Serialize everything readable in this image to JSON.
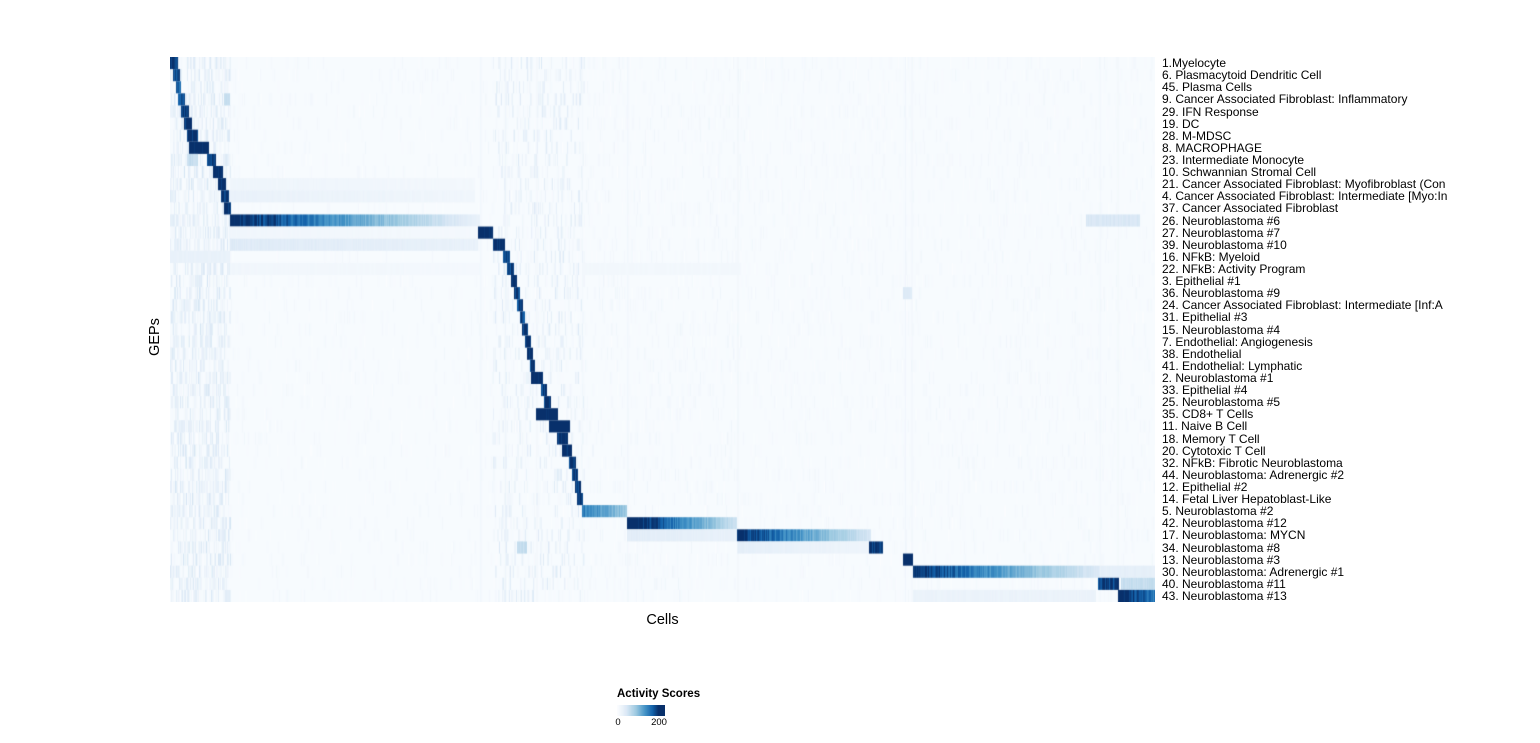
{
  "chart_data": {
    "type": "heatmap",
    "title": "",
    "xlabel": "Cells",
    "ylabel": "GEPs",
    "legend": {
      "title": "Activity Scores",
      "min": 0,
      "max": 200
    },
    "colormap": {
      "description": "white-to-dark-blue (Blues)",
      "stops": [
        {
          "t": 0.0,
          "color": "#fbfdff"
        },
        {
          "t": 0.22,
          "color": "#dce9f6"
        },
        {
          "t": 0.45,
          "color": "#9ecae1"
        },
        {
          "t": 0.68,
          "color": "#4292c6"
        },
        {
          "t": 0.86,
          "color": "#1361a9"
        },
        {
          "t": 1.0,
          "color": "#08306b"
        }
      ]
    },
    "axes": {
      "x_range_note": "cells ordered by cluster, no tick labels",
      "grid": false,
      "legend_position": "bottom-center"
    },
    "rows": [
      {
        "label": "1.Myelocyte",
        "segments": [
          [
            0.0,
            0.008,
            190,
            190
          ]
        ]
      },
      {
        "label": "6. Plasmacytoid Dendritic Cell",
        "segments": [
          [
            0.003,
            0.01,
            180,
            180
          ]
        ]
      },
      {
        "label": "45. Plasma Cells",
        "segments": [
          [
            0.006,
            0.011,
            170,
            170
          ]
        ]
      },
      {
        "label": "9. Cancer Associated Fibroblast: Inflammatory",
        "segments": [
          [
            0.008,
            0.015,
            185,
            185
          ],
          [
            0.055,
            0.061,
            60,
            60
          ]
        ]
      },
      {
        "label": "29. IFN Response",
        "segments": [
          [
            0.011,
            0.019,
            190,
            190
          ]
        ]
      },
      {
        "label": "19. DC",
        "segments": [
          [
            0.014,
            0.022,
            200,
            200
          ]
        ]
      },
      {
        "label": "28. M-MDSC",
        "segments": [
          [
            0.017,
            0.028,
            200,
            200
          ]
        ]
      },
      {
        "label": "8. MACROPHAGE",
        "segments": [
          [
            0.019,
            0.04,
            215,
            215
          ]
        ]
      },
      {
        "label": "23. Intermediate Monocyte",
        "segments": [
          [
            0.038,
            0.047,
            195,
            195
          ],
          [
            0.017,
            0.028,
            60,
            60
          ]
        ]
      },
      {
        "label": "10. Schwannian Stromal Cell",
        "segments": [
          [
            0.044,
            0.054,
            210,
            210
          ]
        ]
      },
      {
        "label": "21. Cancer Associated Fibroblast: Myofibroblast (Con",
        "segments": [
          [
            0.049,
            0.057,
            200,
            200
          ],
          [
            0.061,
            0.31,
            18,
            12
          ]
        ]
      },
      {
        "label": "4. Cancer Associated Fibroblast: Intermediate [Myo:In",
        "segments": [
          [
            0.052,
            0.06,
            200,
            200
          ],
          [
            0.061,
            0.31,
            25,
            15
          ]
        ]
      },
      {
        "label": "37. Cancer Associated Fibroblast",
        "segments": [
          [
            0.055,
            0.062,
            205,
            205
          ]
        ]
      },
      {
        "label": "26. Neuroblastoma #6",
        "segments": [
          [
            0.061,
            0.315,
            215,
            25
          ],
          [
            0.93,
            0.985,
            45,
            45
          ]
        ]
      },
      {
        "label": "27. Neuroblastoma #7",
        "segments": [
          [
            0.313,
            0.328,
            210,
            210
          ],
          [
            0.061,
            0.313,
            15,
            10
          ]
        ]
      },
      {
        "label": "39. Neuroblastoma #10",
        "segments": [
          [
            0.061,
            0.313,
            40,
            25
          ],
          [
            0.328,
            0.34,
            205,
            205
          ]
        ]
      },
      {
        "label": "16. NFkB: Myeloid",
        "segments": [
          [
            0.338,
            0.345,
            195,
            195
          ],
          [
            0.0,
            0.061,
            25,
            25
          ]
        ]
      },
      {
        "label": "22. NFkB: Activity Program",
        "segments": [
          [
            0.342,
            0.349,
            190,
            190
          ],
          [
            0.061,
            0.315,
            14,
            10
          ],
          [
            0.418,
            0.58,
            12,
            12
          ]
        ]
      },
      {
        "label": "3. Epithelial #1",
        "segments": [
          [
            0.346,
            0.352,
            200,
            200
          ]
        ]
      },
      {
        "label": "36. Neuroblastoma #9",
        "segments": [
          [
            0.349,
            0.355,
            195,
            195
          ],
          [
            0.744,
            0.753,
            40,
            40
          ]
        ]
      },
      {
        "label": "24. Cancer Associated Fibroblast: Intermediate [Inf:A",
        "segments": [
          [
            0.352,
            0.358,
            190,
            190
          ]
        ]
      },
      {
        "label": "31. Epithelial #3",
        "segments": [
          [
            0.355,
            0.36,
            185,
            185
          ]
        ]
      },
      {
        "label": "15. Neuroblastoma #4",
        "segments": [
          [
            0.357,
            0.363,
            200,
            200
          ]
        ]
      },
      {
        "label": "7. Endothelial: Angiogenesis",
        "segments": [
          [
            0.36,
            0.366,
            205,
            205
          ]
        ]
      },
      {
        "label": "38. Endothelial",
        "segments": [
          [
            0.362,
            0.369,
            210,
            210
          ]
        ]
      },
      {
        "label": "41. Endothelial: Lymphatic",
        "segments": [
          [
            0.365,
            0.371,
            195,
            195
          ]
        ]
      },
      {
        "label": "2. Neuroblastoma #1",
        "segments": [
          [
            0.367,
            0.379,
            215,
            215
          ]
        ]
      },
      {
        "label": "33. Epithelial #4",
        "segments": [
          [
            0.377,
            0.383,
            190,
            190
          ]
        ]
      },
      {
        "label": "25. Neuroblastoma #5",
        "segments": [
          [
            0.38,
            0.387,
            195,
            195
          ]
        ]
      },
      {
        "label": "35. CD8+ T Cells",
        "segments": [
          [
            0.372,
            0.394,
            215,
            215
          ]
        ]
      },
      {
        "label": "11. Naive B Cell",
        "segments": [
          [
            0.385,
            0.406,
            220,
            220
          ]
        ]
      },
      {
        "label": "18. Memory T Cell",
        "segments": [
          [
            0.393,
            0.404,
            205,
            205
          ]
        ]
      },
      {
        "label": "20. Cytotoxic T Cell",
        "segments": [
          [
            0.398,
            0.408,
            200,
            200
          ]
        ]
      },
      {
        "label": "32. NFkB: Fibrotic Neuroblastoma",
        "segments": [
          [
            0.405,
            0.412,
            195,
            195
          ]
        ]
      },
      {
        "label": "44. Neuroblastoma: Adrenergic #2",
        "segments": [
          [
            0.408,
            0.414,
            190,
            190
          ]
        ]
      },
      {
        "label": "12. Epithelial #2",
        "segments": [
          [
            0.411,
            0.417,
            195,
            195
          ]
        ]
      },
      {
        "label": "14. Fetal Liver Hepatoblast-Like",
        "segments": [
          [
            0.413,
            0.419,
            200,
            200
          ]
        ]
      },
      {
        "label": "5. Neuroblastoma #2",
        "segments": [
          [
            0.418,
            0.464,
            150,
            90
          ]
        ]
      },
      {
        "label": "42. Neuroblastoma #12",
        "segments": [
          [
            0.464,
            0.576,
            230,
            55
          ]
        ]
      },
      {
        "label": "17. Neuroblastoma: MYCN",
        "segments": [
          [
            0.576,
            0.712,
            205,
            45
          ],
          [
            0.464,
            0.576,
            35,
            25
          ]
        ]
      },
      {
        "label": "34. Neuroblastoma #8",
        "segments": [
          [
            0.576,
            0.71,
            30,
            18
          ],
          [
            0.71,
            0.724,
            195,
            195
          ],
          [
            0.352,
            0.362,
            60,
            60
          ]
        ]
      },
      {
        "label": "13. Neuroblastoma #3",
        "segments": [
          [
            0.744,
            0.754,
            210,
            210
          ]
        ]
      },
      {
        "label": "30. Neuroblastoma: Adrenergic #1",
        "segments": [
          [
            0.754,
            0.944,
            205,
            40
          ],
          [
            0.944,
            1.0,
            30,
            30
          ]
        ]
      },
      {
        "label": "40. Neuroblastoma #11",
        "segments": [
          [
            0.942,
            0.963,
            190,
            190
          ],
          [
            0.965,
            1.0,
            60,
            60
          ]
        ]
      },
      {
        "label": "43. Neuroblastoma #13",
        "segments": [
          [
            0.962,
            1.0,
            215,
            150
          ],
          [
            0.754,
            0.94,
            22,
            22
          ]
        ]
      }
    ],
    "render": {
      "background_value": 5,
      "stripes": [
        {
          "x": 0.315,
          "v": 20
        },
        {
          "x": 0.34,
          "v": 25
        },
        {
          "x": 0.372,
          "v": 18
        },
        {
          "x": 0.418,
          "v": 15
        },
        {
          "x": 0.464,
          "v": 18
        },
        {
          "x": 0.576,
          "v": 20
        },
        {
          "x": 0.746,
          "v": 22
        },
        {
          "x": 0.753,
          "v": 15
        },
        {
          "x": 0.944,
          "v": 15
        },
        {
          "x": 0.962,
          "v": 15
        }
      ],
      "noise": [
        {
          "start": 0.0,
          "end": 1.0,
          "per_row": 120,
          "vmax": 14
        },
        {
          "start": 0.0,
          "end": 0.061,
          "per_row": 50,
          "vmax": 50
        },
        {
          "start": 0.327,
          "end": 0.42,
          "per_row": 25,
          "vmax": 45
        },
        {
          "start": 0.418,
          "end": 0.58,
          "per_row": 15,
          "vmax": 18
        },
        {
          "start": 0.58,
          "end": 0.75,
          "per_row": 10,
          "vmax": 12
        },
        {
          "start": 0.746,
          "end": 1.0,
          "per_row": 12,
          "vmax": 15
        }
      ]
    }
  }
}
